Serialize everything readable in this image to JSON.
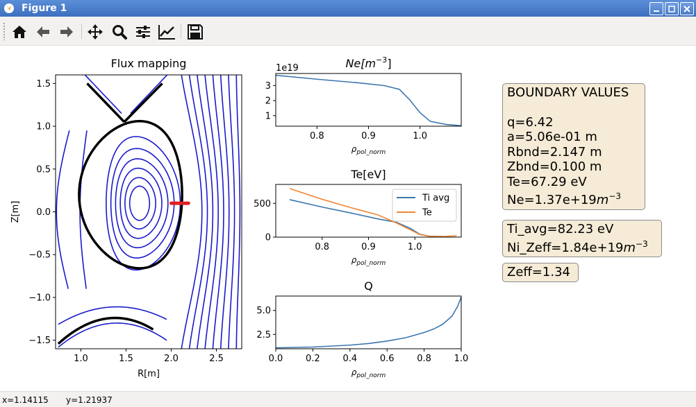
{
  "window": {
    "title": "Figure 1"
  },
  "toolbar": {
    "buttons": [
      {
        "name": "home-button",
        "icon": "home-icon"
      },
      {
        "name": "back-button",
        "icon": "arrow-left-icon"
      },
      {
        "name": "forward-button",
        "icon": "arrow-right-icon"
      },
      {
        "name": "pan-button",
        "icon": "move-icon"
      },
      {
        "name": "zoom-button",
        "icon": "zoom-icon"
      },
      {
        "name": "subplots-button",
        "icon": "sliders-icon"
      },
      {
        "name": "customize-button",
        "icon": "chart-line-icon"
      },
      {
        "name": "save-button",
        "icon": "floppy-icon"
      }
    ]
  },
  "status": {
    "x": "x=1.14115",
    "y": "y=1.21937"
  },
  "boxes": {
    "boundary": {
      "heading": "BOUNDARY VALUES",
      "q": "q=6.42",
      "a": "a=5.06e-01 m",
      "rbnd": "Rbnd=2.147 m",
      "zbnd": "Zbnd=0.100 m",
      "te": "Te=67.29 eV",
      "ne_prefix": "Ne=1.37e+19",
      "ne_unit": "m",
      "ne_exp": "−3"
    },
    "ion": {
      "ti": "Ti_avg=82.23 eV",
      "ni_prefix": "Ni_Zeff=1.84e+19",
      "ni_unit": "m",
      "ni_exp": "−3"
    },
    "zeff": {
      "zeff": "Zeff=1.34"
    }
  },
  "colors": {
    "contour": "#1a1acd",
    "separatrix": "#000000",
    "marker": "#e02020",
    "series_blue": "#3b75af",
    "series_orange": "#ef8636"
  },
  "chart_data": [
    {
      "type": "contour",
      "title": "Flux mapping",
      "xlabel": "R[m]",
      "ylabel": "Z[m]",
      "xlim": [
        0.72,
        2.78
      ],
      "ylim": [
        -1.6,
        1.6
      ],
      "xticks": [
        "1.0",
        "1.5",
        "2.0",
        "2.5"
      ],
      "yticks": [
        "1.5",
        "1.0",
        "0.5",
        "0.0",
        "−0.5",
        "−1.0",
        "−1.5"
      ],
      "axis_center": [
        1.65,
        0.1
      ],
      "boundary_segment": {
        "r": [
          2.0,
          2.19
        ],
        "z": [
          0.1,
          0.1
        ]
      }
    },
    {
      "type": "line",
      "title_base": "Ne[",
      "title_unit": "m",
      "title_exp": "−3",
      "title_close": "]",
      "offset_label": "1e19",
      "xlabel": "ρ",
      "xlabel_sub": "pol_norm",
      "xlim": [
        0.72,
        1.08
      ],
      "ylim": [
        0.3,
        3.8
      ],
      "xticks": [
        "0.8",
        "0.9",
        "1.0"
      ],
      "yticks": [
        "3",
        "2",
        "1"
      ],
      "series": [
        {
          "x": [
            0.72,
            0.8,
            0.88,
            0.93,
            0.96,
            0.98,
            1.0,
            1.02,
            1.05,
            1.08
          ],
          "values": [
            3.68,
            3.42,
            3.18,
            3.0,
            2.75,
            2.05,
            1.2,
            0.62,
            0.42,
            0.33
          ]
        }
      ]
    },
    {
      "type": "line",
      "title": "Te[eV]",
      "xlabel": "ρ",
      "xlabel_sub": "pol_norm",
      "xlim": [
        0.7,
        1.1
      ],
      "ylim": [
        0,
        780
      ],
      "xticks": [
        "0.8",
        "0.9",
        "1.0"
      ],
      "yticks": [
        "500",
        "0"
      ],
      "legend_position": "upper-right",
      "series": [
        {
          "name": "Ti avg",
          "x": [
            0.73,
            0.8,
            0.86,
            0.92,
            0.96,
            0.99,
            1.01,
            1.03,
            1.06
          ],
          "values": [
            555,
            445,
            360,
            270,
            220,
            130,
            45,
            15,
            10
          ]
        },
        {
          "name": "Te",
          "x": [
            0.73,
            0.8,
            0.86,
            0.92,
            0.96,
            0.99,
            1.01,
            1.03,
            1.06,
            1.09
          ],
          "values": [
            720,
            560,
            440,
            330,
            210,
            110,
            40,
            15,
            10,
            20
          ]
        }
      ]
    },
    {
      "type": "line",
      "title": "Q",
      "xlabel": "ρ",
      "xlabel_sub": "pol_norm",
      "xlim": [
        0.0,
        1.0
      ],
      "ylim": [
        1.0,
        6.5
      ],
      "xticks": [
        "0.0",
        "0.2",
        "0.4",
        "0.6",
        "0.8",
        "1.0"
      ],
      "yticks": [
        "5.0",
        "2.5"
      ],
      "series": [
        {
          "x": [
            0.0,
            0.2,
            0.4,
            0.5,
            0.6,
            0.7,
            0.8,
            0.85,
            0.9,
            0.95,
            0.98,
            1.0
          ],
          "values": [
            1.1,
            1.18,
            1.38,
            1.55,
            1.8,
            2.15,
            2.7,
            3.05,
            3.55,
            4.4,
            5.4,
            6.4
          ]
        }
      ]
    }
  ]
}
